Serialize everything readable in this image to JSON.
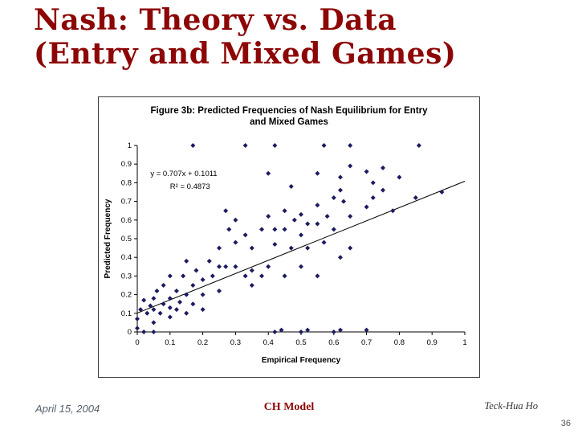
{
  "slide": {
    "title_line1": "Nash: Theory vs. Data",
    "title_line2": "(Entry and Mixed Games)",
    "footer_left": "April 15, 2004",
    "footer_center": "CH Model",
    "footer_right": "Teck-Hua Ho",
    "slide_number": "36"
  },
  "colors": {
    "title": "#8d0606",
    "accent": "#8d0606",
    "muted": "#55606e",
    "marker": "#1b1b60",
    "trendline": "#000000"
  },
  "chart_data": {
    "type": "scatter",
    "title_line1": "Figure 3b: Predicted Frequencies of Nash Equilibrium for Entry",
    "title_line2": "and Mixed Games",
    "xlabel": "Empirical Frequency",
    "ylabel": "Predicted Frequency",
    "xlim": [
      0,
      1
    ],
    "ylim": [
      0,
      1
    ],
    "xticks": [
      0,
      0.1,
      0.2,
      0.3,
      0.4,
      0.5,
      0.6,
      0.7,
      0.8,
      0.9,
      1
    ],
    "xtick_labels": [
      "0",
      "0.1",
      "0.2",
      "0.3",
      "0.4",
      "0.5",
      "0.6",
      "0.7",
      "0.8",
      "0.9",
      "1"
    ],
    "yticks": [
      0,
      0.1,
      0.2,
      0.3,
      0.4,
      0.5,
      0.6,
      0.7,
      0.8,
      0.9,
      1
    ],
    "ytick_labels": [
      "0",
      "0.1",
      "0.2",
      "0.3",
      "0.4",
      "0.5",
      "0.6",
      "0.7",
      "0.8",
      "0.9",
      "1"
    ],
    "grid": false,
    "legend": "none",
    "annotation_line1": "y = 0.707x + 0.1011",
    "annotation_line2": "R² = 0.4873",
    "trendline": {
      "slope": 0.707,
      "intercept": 0.1011,
      "x_start": 0,
      "x_end": 1
    },
    "points": [
      [
        0.0,
        0.02
      ],
      [
        0.0,
        0.07
      ],
      [
        0.01,
        0.12
      ],
      [
        0.02,
        0.0
      ],
      [
        0.02,
        0.17
      ],
      [
        0.03,
        0.1
      ],
      [
        0.04,
        0.14
      ],
      [
        0.05,
        0.0
      ],
      [
        0.05,
        0.05
      ],
      [
        0.05,
        0.12
      ],
      [
        0.05,
        0.18
      ],
      [
        0.06,
        0.22
      ],
      [
        0.07,
        0.1
      ],
      [
        0.08,
        0.15
      ],
      [
        0.08,
        0.25
      ],
      [
        0.1,
        0.08
      ],
      [
        0.1,
        0.13
      ],
      [
        0.1,
        0.18
      ],
      [
        0.1,
        0.3
      ],
      [
        0.12,
        0.12
      ],
      [
        0.12,
        0.22
      ],
      [
        0.13,
        0.16
      ],
      [
        0.14,
        0.3
      ],
      [
        0.15,
        0.1
      ],
      [
        0.15,
        0.2
      ],
      [
        0.15,
        0.38
      ],
      [
        0.17,
        0.15
      ],
      [
        0.17,
        0.25
      ],
      [
        0.17,
        1.0
      ],
      [
        0.18,
        0.33
      ],
      [
        0.2,
        0.12
      ],
      [
        0.2,
        0.2
      ],
      [
        0.2,
        0.28
      ],
      [
        0.22,
        0.38
      ],
      [
        0.23,
        0.3
      ],
      [
        0.25,
        0.22
      ],
      [
        0.25,
        0.35
      ],
      [
        0.25,
        0.45
      ],
      [
        0.27,
        0.35
      ],
      [
        0.27,
        0.65
      ],
      [
        0.28,
        0.55
      ],
      [
        0.3,
        0.35
      ],
      [
        0.3,
        0.48
      ],
      [
        0.3,
        0.6
      ],
      [
        0.33,
        0.3
      ],
      [
        0.33,
        0.52
      ],
      [
        0.33,
        1.0
      ],
      [
        0.35,
        0.25
      ],
      [
        0.35,
        0.33
      ],
      [
        0.35,
        0.45
      ],
      [
        0.38,
        0.3
      ],
      [
        0.38,
        0.55
      ],
      [
        0.4,
        0.35
      ],
      [
        0.4,
        0.62
      ],
      [
        0.4,
        0.85
      ],
      [
        0.42,
        0.0
      ],
      [
        0.42,
        0.47
      ],
      [
        0.42,
        0.55
      ],
      [
        0.42,
        1.0
      ],
      [
        0.44,
        0.01
      ],
      [
        0.45,
        0.3
      ],
      [
        0.45,
        0.55
      ],
      [
        0.45,
        0.65
      ],
      [
        0.47,
        0.45
      ],
      [
        0.47,
        0.78
      ],
      [
        0.48,
        0.6
      ],
      [
        0.5,
        0.0
      ],
      [
        0.5,
        0.35
      ],
      [
        0.5,
        0.52
      ],
      [
        0.5,
        0.63
      ],
      [
        0.52,
        0.01
      ],
      [
        0.52,
        0.45
      ],
      [
        0.52,
        0.58
      ],
      [
        0.55,
        0.3
      ],
      [
        0.55,
        0.58
      ],
      [
        0.55,
        0.68
      ],
      [
        0.55,
        0.85
      ],
      [
        0.57,
        0.48
      ],
      [
        0.57,
        1.0
      ],
      [
        0.58,
        0.62
      ],
      [
        0.6,
        0.0
      ],
      [
        0.6,
        0.55
      ],
      [
        0.6,
        0.72
      ],
      [
        0.62,
        0.01
      ],
      [
        0.62,
        0.4
      ],
      [
        0.62,
        0.76
      ],
      [
        0.62,
        0.83
      ],
      [
        0.63,
        0.7
      ],
      [
        0.65,
        0.45
      ],
      [
        0.65,
        0.62
      ],
      [
        0.65,
        0.89
      ],
      [
        0.65,
        1.0
      ],
      [
        0.7,
        0.01
      ],
      [
        0.7,
        0.67
      ],
      [
        0.7,
        0.86
      ],
      [
        0.72,
        0.72
      ],
      [
        0.72,
        0.8
      ],
      [
        0.75,
        0.76
      ],
      [
        0.75,
        0.88
      ],
      [
        0.78,
        0.65
      ],
      [
        0.8,
        0.83
      ],
      [
        0.85,
        0.72
      ],
      [
        0.86,
        1.0
      ],
      [
        0.93,
        0.75
      ]
    ]
  }
}
